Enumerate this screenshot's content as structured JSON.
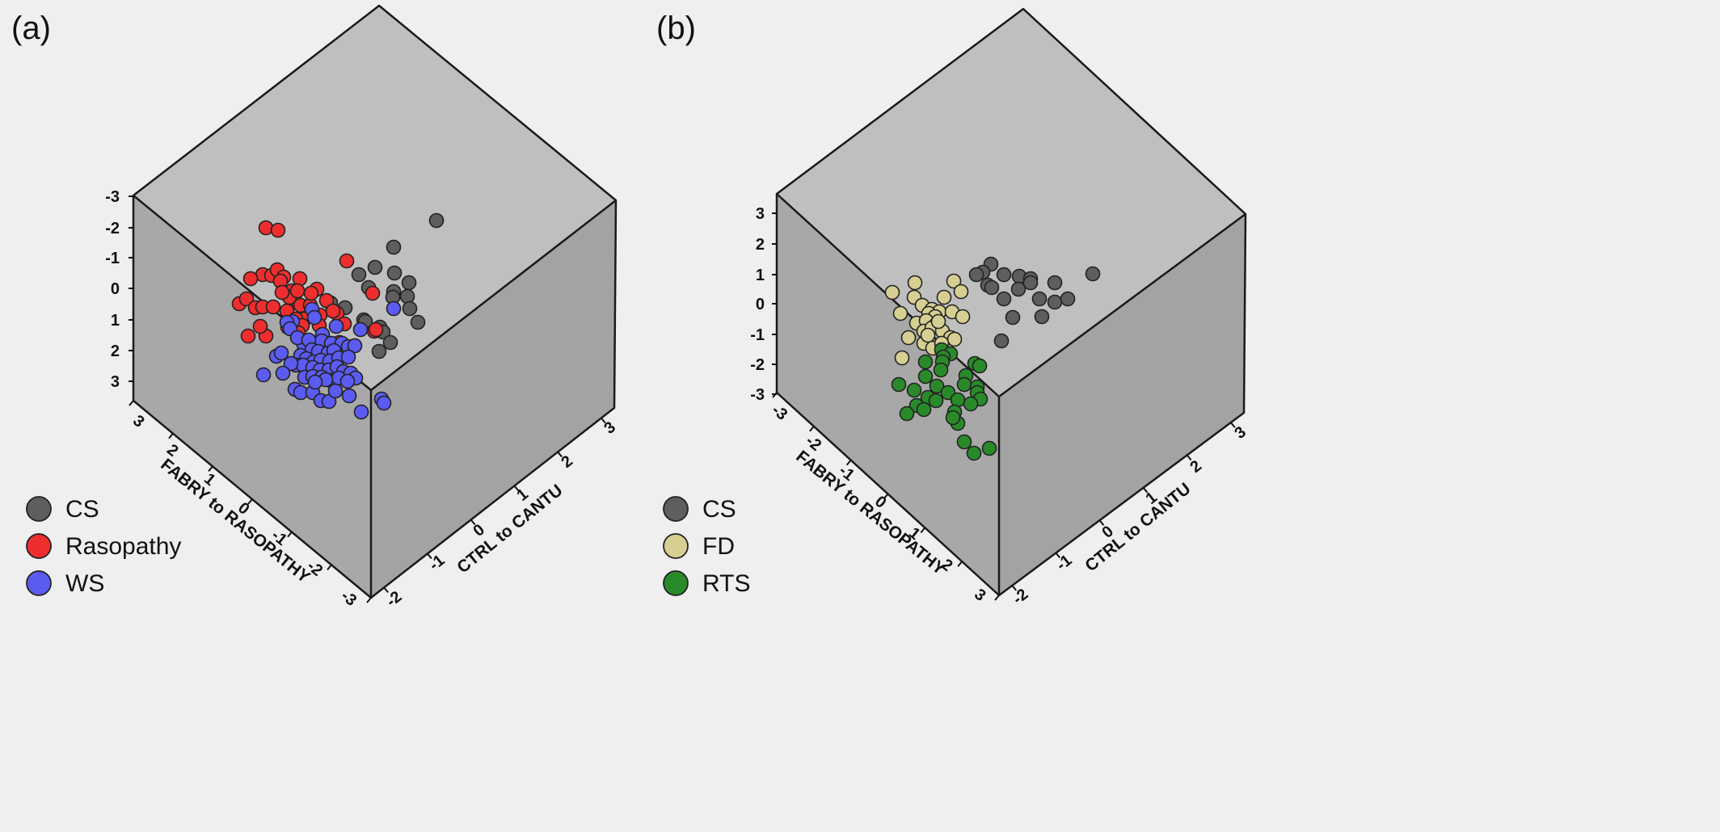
{
  "chart_data": [
    {
      "type": "scatter",
      "panel_label": "(a)",
      "xlabel": "FABRY to RASOPATHY",
      "ylabel": "CTRL to CANTU",
      "vertical_ticks": [
        "-3",
        "-2",
        "-1",
        "0",
        "1",
        "2",
        "3"
      ],
      "left_ticks": [
        "3",
        "2",
        "1",
        "0",
        "-1",
        "-2",
        "-3"
      ],
      "right_ticks": [
        "-2",
        "-1",
        "0",
        "1",
        "2",
        "3"
      ],
      "legend_position": "bottom-left",
      "series": [
        {
          "name": "CS",
          "color": "#5e5e5e",
          "points": [
            [
              540,
              273
            ],
            [
              487,
              306
            ],
            [
              464,
              331
            ],
            [
              444,
              340
            ],
            [
              488,
              338
            ],
            [
              456,
              356
            ],
            [
              506,
              350
            ],
            [
              487,
              361
            ],
            [
              504,
              367
            ],
            [
              486,
              368
            ],
            [
              507,
              382
            ],
            [
              427,
              381
            ],
            [
              409,
              375
            ],
            [
              450,
              396
            ],
            [
              452,
              398
            ],
            [
              470,
              405
            ],
            [
              517,
              399
            ],
            [
              474,
              411
            ],
            [
              483,
              424
            ],
            [
              469,
              435
            ]
          ]
        },
        {
          "name": "Rasopathy",
          "color": "#ee2e2e",
          "points": [
            [
              329,
              282
            ],
            [
              344,
              285
            ],
            [
              429,
              323
            ],
            [
              325,
              340
            ],
            [
              336,
              341
            ],
            [
              343,
              334
            ],
            [
              351,
              343
            ],
            [
              371,
              345
            ],
            [
              347,
              348
            ],
            [
              310,
              345
            ],
            [
              296,
              376
            ],
            [
              305,
              370
            ],
            [
              316,
              381
            ],
            [
              325,
              380
            ],
            [
              338,
              380
            ],
            [
              355,
              385
            ],
            [
              364,
              370
            ],
            [
              372,
              378
            ],
            [
              384,
              378
            ],
            [
              392,
              358
            ],
            [
              385,
              363
            ],
            [
              361,
              360
            ],
            [
              358,
              368
            ],
            [
              349,
              362
            ],
            [
              368,
              360
            ],
            [
              404,
              372
            ],
            [
              417,
              388
            ],
            [
              412,
              385
            ],
            [
              396,
              390
            ],
            [
              377,
              395
            ],
            [
              366,
              395
            ],
            [
              356,
              405
            ],
            [
              374,
              403
            ],
            [
              369,
              412
            ],
            [
              307,
              416
            ],
            [
              329,
              416
            ],
            [
              322,
              404
            ],
            [
              461,
              363
            ],
            [
              463,
              410
            ],
            [
              426,
              401
            ],
            [
              420,
              424
            ],
            [
              465,
              408
            ],
            [
              395,
              403
            ]
          ]
        },
        {
          "name": "WS",
          "color": "#5b5bf2",
          "points": [
            [
              487,
              382
            ],
            [
              386,
              383
            ],
            [
              389,
              393
            ],
            [
              362,
              398
            ],
            [
              355,
              399
            ],
            [
              359,
              407
            ],
            [
              416,
              404
            ],
            [
              399,
              414
            ],
            [
              446,
              408
            ],
            [
              398,
              422
            ],
            [
              410,
              425
            ],
            [
              423,
              425
            ],
            [
              431,
              429
            ],
            [
              439,
              428
            ],
            [
              376,
              427
            ],
            [
              368,
              418
            ],
            [
              382,
              421
            ],
            [
              386,
              433
            ],
            [
              394,
              435
            ],
            [
              406,
              437
            ],
            [
              413,
              434
            ],
            [
              372,
              440
            ],
            [
              379,
              444
            ],
            [
              388,
              448
            ],
            [
              397,
              446
            ],
            [
              408,
              447
            ],
            [
              419,
              443
            ],
            [
              431,
              442
            ],
            [
              342,
              441
            ],
            [
              348,
              437
            ],
            [
              366,
              452
            ],
            [
              375,
              452
            ],
            [
              387,
              455
            ],
            [
              396,
              458
            ],
            [
              407,
              458
            ],
            [
              417,
              454
            ],
            [
              425,
              460
            ],
            [
              434,
              462
            ],
            [
              440,
              468
            ],
            [
              326,
              464
            ],
            [
              377,
              467
            ],
            [
              387,
              466
            ],
            [
              398,
              467
            ],
            [
              409,
              471
            ],
            [
              419,
              468
            ],
            [
              430,
              472
            ],
            [
              365,
              482
            ],
            [
              372,
              486
            ],
            [
              387,
              486
            ],
            [
              397,
              496
            ],
            [
              407,
              497
            ],
            [
              415,
              484
            ],
            [
              432,
              490
            ],
            [
              472,
              494
            ],
            [
              475,
              499
            ],
            [
              447,
              510
            ],
            [
              360,
              450
            ],
            [
              350,
              462
            ],
            [
              403,
              470
            ],
            [
              390,
              473
            ]
          ]
        }
      ]
    },
    {
      "type": "scatter",
      "panel_label": "(b)",
      "xlabel": "FABRY to RASOPATHY",
      "ylabel": "CTRL to CANTU",
      "vertical_ticks": [
        "3",
        "2",
        "1",
        "0",
        "-1",
        "-2",
        "-3"
      ],
      "left_ticks": [
        "-3",
        "-2",
        "-1",
        "0",
        "1",
        "2",
        "3"
      ],
      "right_ticks": [
        "-2",
        "-1",
        "0",
        "1",
        "2",
        "3"
      ],
      "legend_position": "bottom-left",
      "series": [
        {
          "name": "CS",
          "color": "#5e5e5e",
          "points": [
            [
              1352,
              339
            ],
            [
              1226,
              327
            ],
            [
              1216,
              337
            ],
            [
              1208,
              340
            ],
            [
              1242,
              340
            ],
            [
              1261,
              342
            ],
            [
              1275,
              345
            ],
            [
              1222,
              353
            ],
            [
              1227,
              356
            ],
            [
              1260,
              358
            ],
            [
              1275,
              350
            ],
            [
              1305,
              350
            ],
            [
              1242,
              370
            ],
            [
              1286,
              370
            ],
            [
              1305,
              374
            ],
            [
              1321,
              370
            ],
            [
              1253,
              393
            ],
            [
              1289,
              392
            ],
            [
              1239,
              422
            ]
          ]
        },
        {
          "name": "FD",
          "color": "#d7cf92",
          "points": [
            [
              1104,
              362
            ],
            [
              1132,
              350
            ],
            [
              1180,
              348
            ],
            [
              1131,
              368
            ],
            [
              1168,
              368
            ],
            [
              1189,
              361
            ],
            [
              1141,
              378
            ],
            [
              1153,
              383
            ],
            [
              1162,
              386
            ],
            [
              1178,
              386
            ],
            [
              1114,
              388
            ],
            [
              1149,
              388
            ],
            [
              1157,
              392
            ],
            [
              1191,
              392
            ],
            [
              1134,
              400
            ],
            [
              1146,
              397
            ],
            [
              1158,
              402
            ],
            [
              1124,
              418
            ],
            [
              1143,
              410
            ],
            [
              1153,
              406
            ],
            [
              1166,
              410
            ],
            [
              1176,
              418
            ],
            [
              1181,
              420
            ],
            [
              1143,
              425
            ],
            [
              1154,
              431
            ],
            [
              1165,
              425
            ],
            [
              1116,
              443
            ],
            [
              1161,
              398
            ],
            [
              1148,
              415
            ]
          ]
        },
        {
          "name": "RTS",
          "color": "#2a8a2a",
          "points": [
            [
              1165,
              433
            ],
            [
              1176,
              438
            ],
            [
              1167,
              442
            ],
            [
              1145,
              448
            ],
            [
              1166,
              448
            ],
            [
              1206,
              450
            ],
            [
              1212,
              453
            ],
            [
              1164,
              458
            ],
            [
              1112,
              476
            ],
            [
              1145,
              466
            ],
            [
              1195,
              465
            ],
            [
              1131,
              483
            ],
            [
              1159,
              478
            ],
            [
              1193,
              476
            ],
            [
              1209,
              479
            ],
            [
              1173,
              486
            ],
            [
              1148,
              492
            ],
            [
              1185,
              495
            ],
            [
              1209,
              486
            ],
            [
              1213,
              494
            ],
            [
              1134,
              502
            ],
            [
              1143,
              507
            ],
            [
              1158,
              496
            ],
            [
              1201,
              500
            ],
            [
              1122,
              512
            ],
            [
              1181,
              510
            ],
            [
              1185,
              524
            ],
            [
              1179,
              517
            ],
            [
              1193,
              547
            ],
            [
              1224,
              555
            ],
            [
              1205,
              561
            ]
          ]
        }
      ]
    }
  ]
}
